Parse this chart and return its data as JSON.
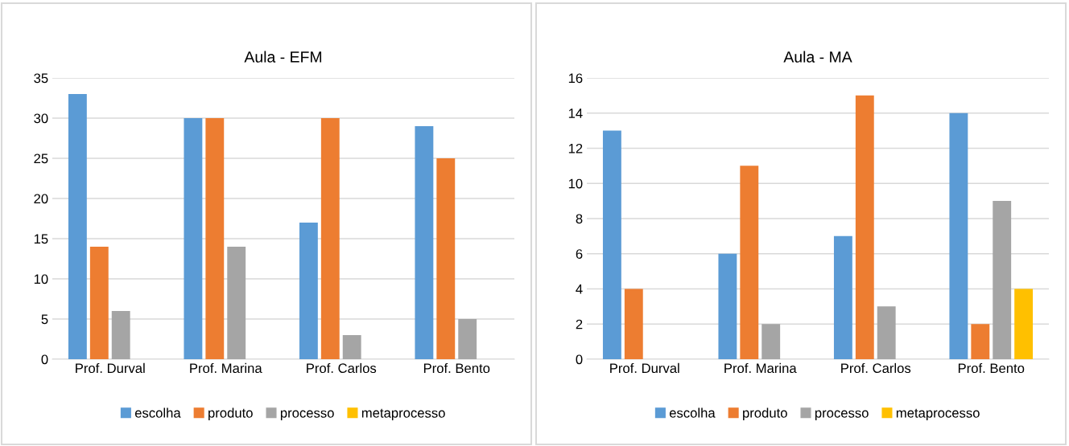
{
  "chart_data": [
    {
      "type": "bar",
      "title": "Aula - EFM",
      "categories": [
        "Prof. Durval",
        "Prof. Marina",
        "Prof. Carlos",
        "Prof. Bento"
      ],
      "series": [
        {
          "name": "escolha",
          "color": "#5b9bd5",
          "values": [
            33,
            30,
            17,
            29
          ]
        },
        {
          "name": "produto",
          "color": "#ed7d31",
          "values": [
            14,
            30,
            30,
            25
          ]
        },
        {
          "name": "processo",
          "color": "#a5a5a5",
          "values": [
            6,
            14,
            3,
            5
          ]
        },
        {
          "name": "metaprocesso",
          "color": "#ffc000",
          "values": [
            0,
            0,
            0,
            0
          ]
        }
      ],
      "ylim": [
        0,
        35
      ],
      "yticks": [
        0,
        5,
        10,
        15,
        20,
        25,
        30,
        35
      ],
      "grid": "y",
      "legend": "bottom"
    },
    {
      "type": "bar",
      "title": "Aula - MA",
      "categories": [
        "Prof. Durval",
        "Prof. Marina",
        "Prof. Carlos",
        "Prof. Bento"
      ],
      "series": [
        {
          "name": "escolha",
          "color": "#5b9bd5",
          "values": [
            13,
            6,
            7,
            14
          ]
        },
        {
          "name": "produto",
          "color": "#ed7d31",
          "values": [
            4,
            11,
            15,
            2
          ]
        },
        {
          "name": "processo",
          "color": "#a5a5a5",
          "values": [
            0,
            2,
            3,
            9
          ]
        },
        {
          "name": "metaprocesso",
          "color": "#ffc000",
          "values": [
            0,
            0,
            0,
            4
          ]
        }
      ],
      "ylim": [
        0,
        16
      ],
      "yticks": [
        0,
        2,
        4,
        6,
        8,
        10,
        12,
        14,
        16
      ],
      "grid": "y",
      "legend": "bottom"
    }
  ]
}
